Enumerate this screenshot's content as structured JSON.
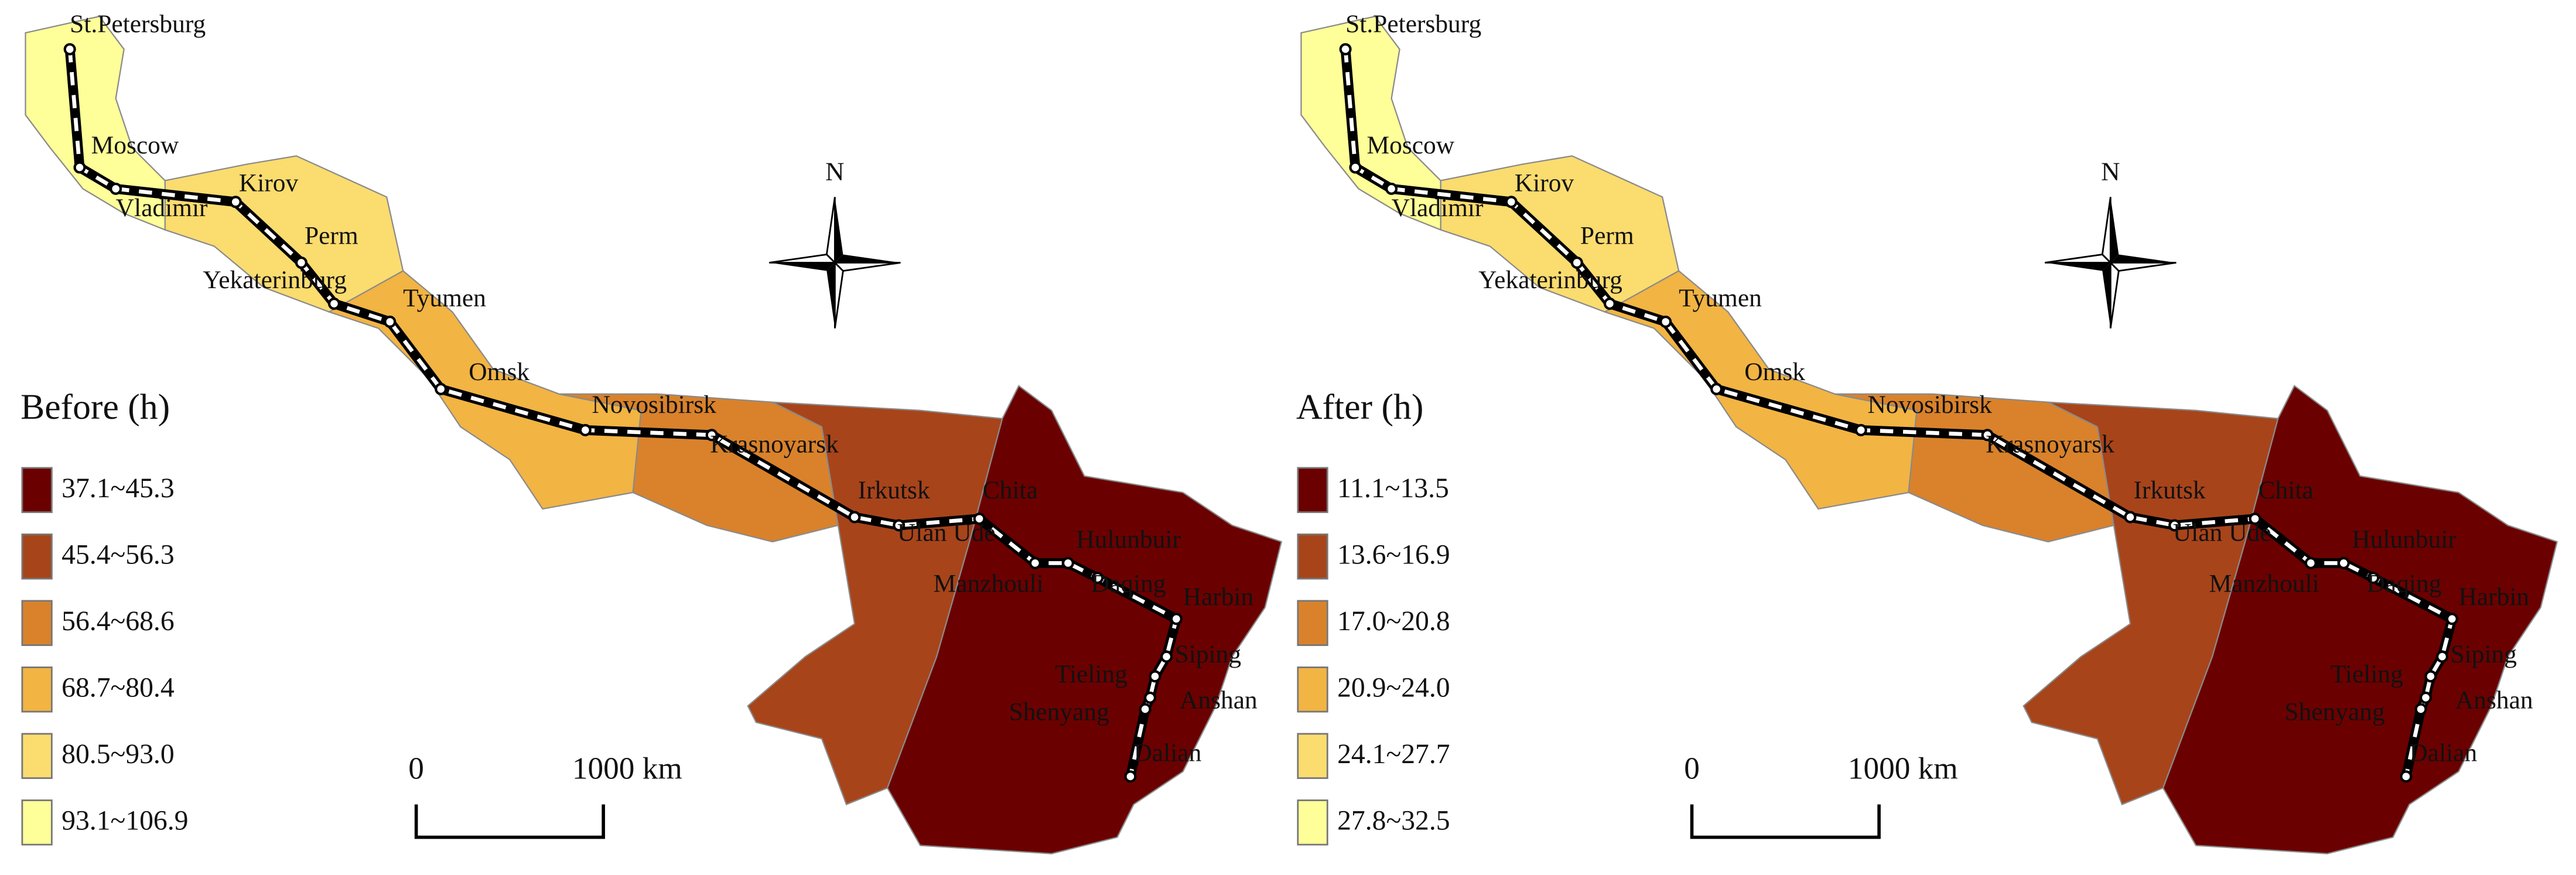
{
  "panels": [
    {
      "legend_title": "Before (h)",
      "classes": [
        {
          "label": "37.1~45.3",
          "color": "#6b0000"
        },
        {
          "label": "45.4~56.3",
          "color": "#a8441a"
        },
        {
          "label": "56.4~68.6",
          "color": "#d9822b"
        },
        {
          "label": "68.7~80.4",
          "color": "#f2b443"
        },
        {
          "label": "80.5~93.0",
          "color": "#fbdc6f"
        },
        {
          "label": "93.1~106.9",
          "color": "#ffff99"
        }
      ],
      "cities": [
        "St.Petersburg",
        "Moscow",
        "Vladimir",
        "Kirov",
        "Perm",
        "Yekaterinburg",
        "Tyumen",
        "Omsk",
        "Novosibirsk",
        "Krasnoyarsk",
        "Irkutsk",
        "Ulan Ude",
        "Chita",
        "Manzhouli",
        "Hulunbuir",
        "Daqing",
        "Harbin",
        "Siping",
        "Tieling",
        "Shenyang",
        "Anshan",
        "Dalian"
      ],
      "north": "N",
      "scale_start": "0",
      "scale_end": "1000 km"
    },
    {
      "legend_title": "After (h)",
      "classes": [
        {
          "label": "11.1~13.5",
          "color": "#6b0000"
        },
        {
          "label": "13.6~16.9",
          "color": "#a8441a"
        },
        {
          "label": "17.0~20.8",
          "color": "#d9822b"
        },
        {
          "label": "20.9~24.0",
          "color": "#f2b443"
        },
        {
          "label": "24.1~27.7",
          "color": "#fbdc6f"
        },
        {
          "label": "27.8~32.5",
          "color": "#ffff99"
        }
      ],
      "cities": [
        "St.Petersburg",
        "Moscow",
        "Vladimir",
        "Kirov",
        "Perm",
        "Yekaterinburg",
        "Tyumen",
        "Omsk",
        "Novosibirsk",
        "Krasnoyarsk",
        "Irkutsk",
        "Ulan Ude",
        "Chita",
        "Manzhouli",
        "Hulunbuir",
        "Daqing",
        "Harbin",
        "Siping",
        "Tieling",
        "Shenyang",
        "Anshan",
        "Dalian"
      ],
      "north": "N",
      "scale_start": "0",
      "scale_end": "1000 km"
    }
  ]
}
